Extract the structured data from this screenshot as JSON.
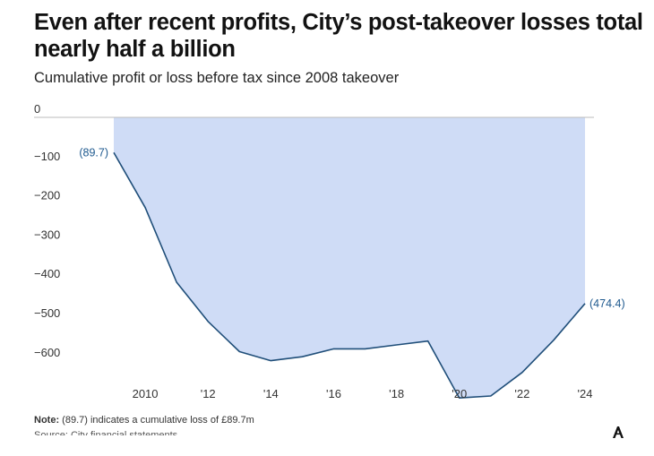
{
  "header": {
    "title": "Even after recent profits, City’s post-takeover losses total nearly half a billion",
    "subtitle": "Cumulative profit or loss before tax since 2008 takeover"
  },
  "footer": {
    "note_label": "Note:",
    "note_text": " (89.7) indicates a cumulative loss of £89.7m",
    "source_text": "Source: City financial statements"
  },
  "colors": {
    "area_fill": "#cfdcf6",
    "line": "#1f4e79",
    "zero_line": "#bbbbbb",
    "label": "#1f5a8f"
  },
  "chart_data": {
    "type": "area",
    "title": "Even after recent profits, City’s post-takeover losses total nearly half a billion",
    "subtitle": "Cumulative profit or loss before tax since 2008 takeover",
    "xlabel": "",
    "ylabel": "",
    "x": [
      2009,
      2010,
      2011,
      2012,
      2013,
      2014,
      2015,
      2016,
      2017,
      2018,
      2019,
      2020,
      2021,
      2022,
      2023,
      2024
    ],
    "series": [
      {
        "values": [
          -89.7,
          -230,
          -420,
          -520,
          -597,
          -620,
          -610,
          -590,
          -590,
          -580,
          -570,
          -715,
          -710,
          -650,
          -568,
          -474.4
        ]
      }
    ],
    "y_ticks": [
      0,
      -100,
      -200,
      -300,
      -400,
      -500,
      -600
    ],
    "y_tick_labels": [
      "0",
      "−100",
      "−200",
      "−300",
      "−400",
      "−500",
      "−600"
    ],
    "x_ticks": [
      2010,
      2012,
      2014,
      2016,
      2018,
      2020,
      2022,
      2024
    ],
    "x_tick_labels": [
      "2010",
      "'12",
      "'14",
      "'16",
      "'18",
      "'20",
      "'22",
      "'24"
    ],
    "xlim": [
      2009,
      2024
    ],
    "ylim": [
      -720,
      0
    ],
    "annotations": [
      {
        "x": 2009,
        "y": -89.7,
        "text": "(89.7)",
        "position": "left"
      },
      {
        "x": 2024,
        "y": -474.4,
        "text": "(474.4)",
        "position": "right"
      }
    ],
    "grid": false,
    "legend": "none"
  }
}
